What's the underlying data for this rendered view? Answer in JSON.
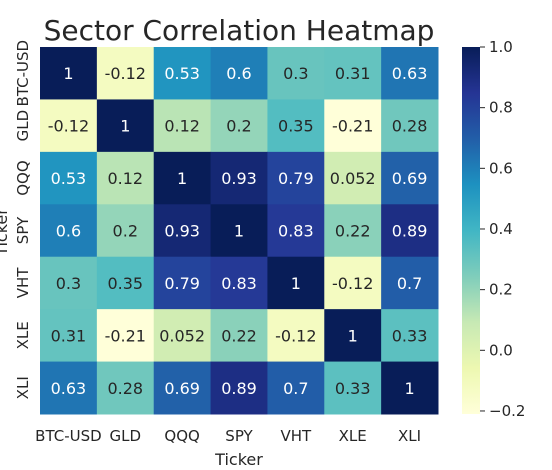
{
  "chart_data": {
    "type": "heatmap",
    "title": "Sector Correlation Heatmap",
    "xlabel": "Ticker",
    "ylabel": "Ticker",
    "categories": [
      "BTC-USD",
      "GLD",
      "QQQ",
      "SPY",
      "VHT",
      "XLE",
      "XLI"
    ],
    "values": [
      [
        1,
        -0.12,
        0.53,
        0.6,
        0.3,
        0.31,
        0.63
      ],
      [
        -0.12,
        1,
        0.12,
        0.2,
        0.35,
        -0.21,
        0.28
      ],
      [
        0.53,
        0.12,
        1,
        0.93,
        0.79,
        0.052,
        0.69
      ],
      [
        0.6,
        0.2,
        0.93,
        1,
        0.83,
        0.22,
        0.89
      ],
      [
        0.3,
        0.35,
        0.79,
        0.83,
        1,
        -0.12,
        0.7
      ],
      [
        0.31,
        -0.21,
        0.052,
        0.22,
        -0.12,
        1,
        0.33
      ],
      [
        0.63,
        0.28,
        0.69,
        0.89,
        0.7,
        0.33,
        1
      ]
    ],
    "value_labels": [
      [
        "1",
        "-0.12",
        "0.53",
        "0.6",
        "0.3",
        "0.31",
        "0.63"
      ],
      [
        "-0.12",
        "1",
        "0.12",
        "0.2",
        "0.35",
        "-0.21",
        "0.28"
      ],
      [
        "0.53",
        "0.12",
        "1",
        "0.93",
        "0.79",
        "0.052",
        "0.69"
      ],
      [
        "0.6",
        "0.2",
        "0.93",
        "1",
        "0.83",
        "0.22",
        "0.89"
      ],
      [
        "0.3",
        "0.35",
        "0.79",
        "0.83",
        "1",
        "-0.12",
        "0.7"
      ],
      [
        "0.31",
        "-0.21",
        "0.052",
        "0.22",
        "-0.12",
        "1",
        "0.33"
      ],
      [
        "0.63",
        "0.28",
        "0.69",
        "0.89",
        "0.7",
        "0.33",
        "1"
      ]
    ],
    "colormap": "YlGnBu",
    "colorbar": {
      "range": [
        -0.21,
        1.0
      ],
      "ticks": [
        -0.2,
        0.0,
        0.2,
        0.4,
        0.6,
        0.8,
        1.0
      ],
      "tick_labels": [
        "−0.2",
        "0.0",
        "0.2",
        "0.4",
        "0.6",
        "0.8",
        "1.0"
      ],
      "placement": "right"
    }
  }
}
